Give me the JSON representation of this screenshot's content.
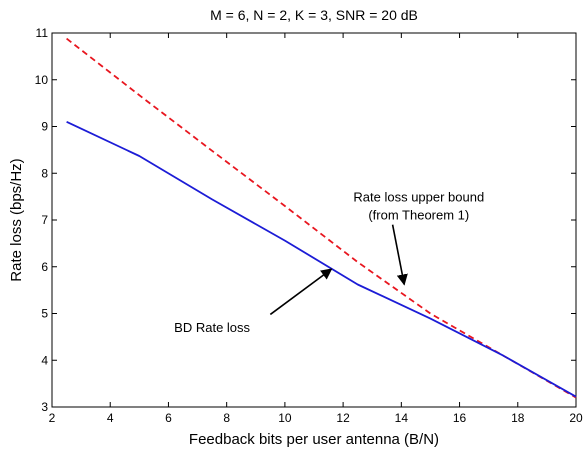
{
  "chart_data": {
    "type": "line",
    "title": "M = 6, N = 2, K = 3, SNR = 20 dB",
    "xlabel": "Feedback bits per user antenna (B/N)",
    "ylabel": "Rate loss (bps/Hz)",
    "xlim": [
      2,
      20
    ],
    "ylim": [
      3,
      11
    ],
    "xticks": [
      2,
      4,
      6,
      8,
      10,
      12,
      14,
      16,
      18,
      20
    ],
    "yticks": [
      3,
      4,
      5,
      6,
      7,
      8,
      9,
      10,
      11
    ],
    "grid": false,
    "series": [
      {
        "style": "dashed",
        "color": "#e8161f",
        "x": [
          2.5,
          5,
          7.5,
          10,
          12.5,
          15,
          17.5,
          20
        ],
        "y": [
          10.88,
          9.67,
          8.48,
          7.3,
          6.1,
          5.0,
          4.1,
          3.2
        ]
      },
      {
        "style": "solid",
        "color": "#1c1cd6",
        "x": [
          2.5,
          5,
          7.5,
          10,
          12.5,
          15,
          17.5,
          20
        ],
        "y": [
          9.1,
          8.37,
          7.44,
          6.56,
          5.62,
          4.89,
          4.1,
          3.22
        ]
      }
    ],
    "annotations": [
      {
        "lines": [
          "Rate loss upper bound",
          "(from Theorem 1)"
        ],
        "text_at": [
          14.6,
          7.4
        ],
        "arrow_from": [
          13.7,
          6.9
        ],
        "arrow_to": [
          14.1,
          5.62
        ]
      },
      {
        "lines": [
          "BD Rate loss"
        ],
        "text_at": [
          7.5,
          4.6
        ],
        "arrow_from": [
          9.5,
          4.98
        ],
        "arrow_to": [
          11.6,
          5.95
        ]
      }
    ]
  }
}
